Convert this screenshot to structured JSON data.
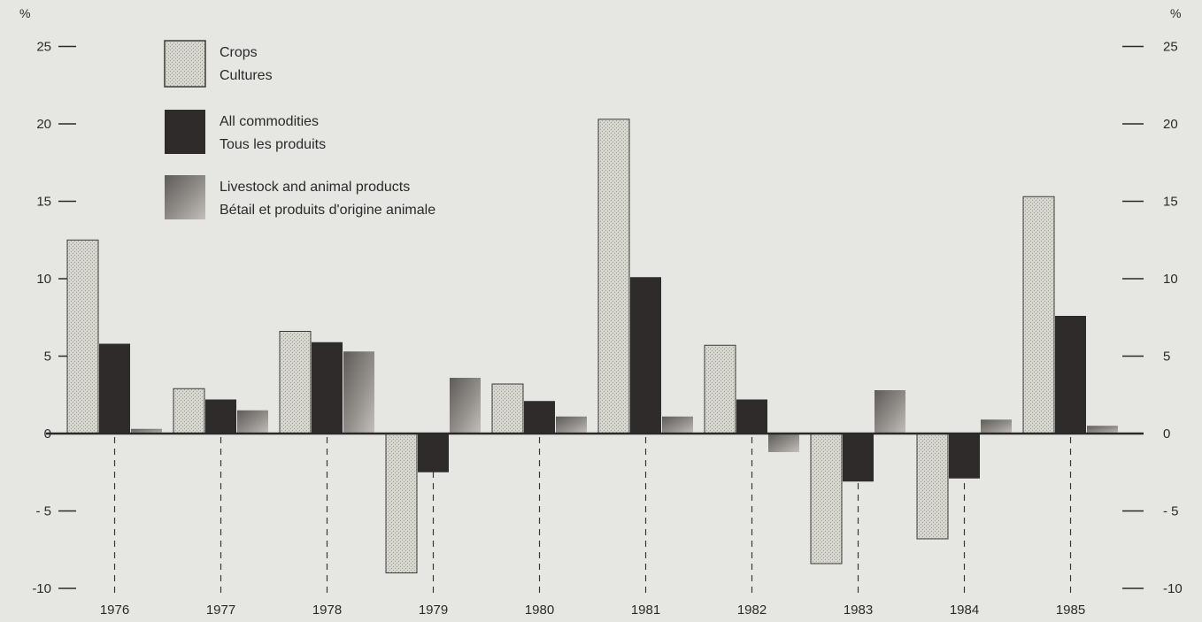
{
  "chart_data": {
    "type": "bar",
    "title": "",
    "xlabel": "",
    "ylabel": "%",
    "y2label": "%",
    "ylim": [
      -10,
      25
    ],
    "yticks": [
      25,
      20,
      15,
      10,
      5,
      0,
      -5,
      -10
    ],
    "ytick_labels_left": [
      "25",
      "20",
      "15",
      "10",
      "5",
      "0",
      "- 5",
      "-10"
    ],
    "ytick_labels_right": [
      "25",
      "20",
      "15",
      "10",
      "5",
      "0",
      "- 5",
      "-10"
    ],
    "grid": false,
    "legend_position": "top-left",
    "categories": [
      "1976",
      "1977",
      "1978",
      "1979",
      "1980",
      "1981",
      "1982",
      "1983",
      "1984",
      "1985"
    ],
    "series": [
      {
        "name": "Crops",
        "name_fr": "Cultures",
        "color": "#d3d3cc",
        "values": [
          12.5,
          2.9,
          6.6,
          -9.0,
          3.2,
          20.3,
          5.7,
          -8.4,
          -6.8,
          15.3
        ]
      },
      {
        "name": "All commodities",
        "name_fr": "Tous les produits",
        "color": "#2e2b2a",
        "values": [
          5.8,
          2.2,
          5.9,
          -2.5,
          2.1,
          10.1,
          2.2,
          -3.1,
          -2.9,
          7.6
        ]
      },
      {
        "name": "Livestock and animal products",
        "name_fr": "Bétail et produits d'origine animale",
        "color": "#8b8784",
        "values": [
          0.3,
          1.5,
          5.3,
          3.6,
          1.1,
          1.1,
          -1.2,
          2.8,
          0.9,
          0.5
        ]
      }
    ]
  }
}
